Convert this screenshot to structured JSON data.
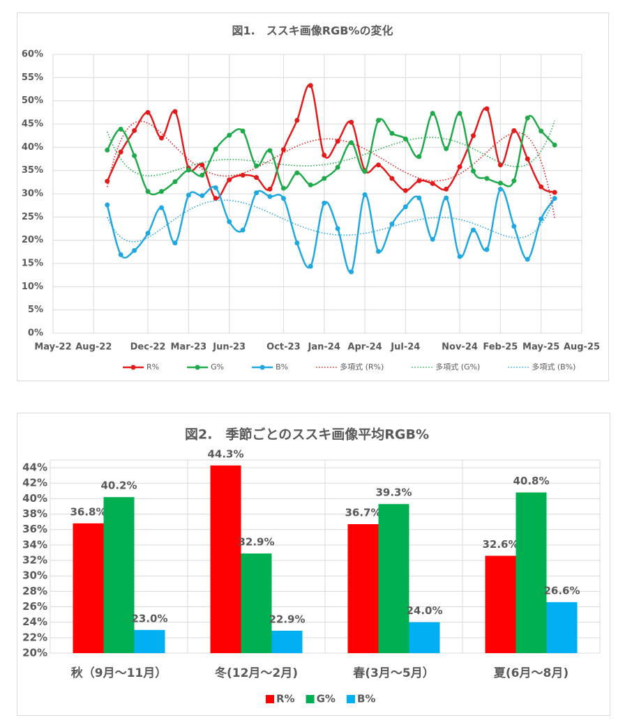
{
  "chart_data": [
    {
      "type": "line",
      "title": "図1.　ススキ画像RGB%の変化",
      "x": [
        "2022-09",
        "2022-10",
        "2022-11",
        "2022-12",
        "2023-01",
        "2023-02",
        "2023-03",
        "2023-04",
        "2023-05",
        "2023-06",
        "2023-07",
        "2023-08",
        "2023-09",
        "2023-10",
        "2023-11",
        "2023-12",
        "2024-01",
        "2024-02",
        "2024-03",
        "2024-04",
        "2024-05",
        "2024-06",
        "2024-07",
        "2024-08",
        "2024-09",
        "2024-10",
        "2024-11",
        "2024-12",
        "2025-01",
        "2025-02",
        "2025-03",
        "2025-04",
        "2025-05",
        "2025-06"
      ],
      "series": [
        {
          "name": "R%",
          "color": "#e31a1c",
          "trendline": {
            "name": "多項式 (R%)",
            "type": "polynomial",
            "order": 6
          },
          "values": [
            32.7,
            39,
            43.6,
            47.5,
            42,
            47.7,
            35.5,
            36.2,
            29,
            33,
            34,
            33.5,
            31,
            39.5,
            45.8,
            53.3,
            38.3,
            41.3,
            45.4,
            35,
            36.2,
            33.3,
            30.7,
            32.8,
            32.2,
            31,
            35.8,
            42.5,
            48.3,
            36.2,
            43.6,
            37.5,
            31.5,
            30.3
          ]
        },
        {
          "name": "G%",
          "color": "#1faa4a",
          "trendline": {
            "name": "多項式 (G%)",
            "type": "polynomial",
            "order": 6
          },
          "values": [
            39.4,
            43.9,
            38.2,
            30.5,
            30.5,
            32.6,
            35.1,
            34.0,
            39.6,
            42.6,
            43.5,
            36.0,
            39.3,
            31.2,
            34.5,
            31.9,
            33.3,
            35.7,
            41.0,
            34.8,
            45.8,
            43.0,
            41.8,
            38.0,
            47.3,
            39.7,
            47.3,
            34.9,
            33.3,
            32.3,
            32.8,
            46.3,
            43.5,
            40.5
          ]
        },
        {
          "name": "B%",
          "color": "#1fa8e0",
          "trendline": {
            "name": "多項式 (B%)",
            "type": "polynomial",
            "order": 6
          },
          "values": [
            27.6,
            16.9,
            17.8,
            21.5,
            27.0,
            19.4,
            29.7,
            29.6,
            31.3,
            24.0,
            22.2,
            30.2,
            29.4,
            29.0,
            19.4,
            14.4,
            28.0,
            22.5,
            13.2,
            29.8,
            17.6,
            23.5,
            27.2,
            29.1,
            20.2,
            29.1,
            16.5,
            22.2,
            18.0,
            31.0,
            23.0,
            15.9,
            24.6,
            29.0
          ]
        }
      ],
      "xlim": [
        "2022-05",
        "2025-08"
      ],
      "xticks": [
        {
          "value": "2022-05",
          "label": "May-22"
        },
        {
          "value": "2022-08",
          "label": "Aug-22"
        },
        {
          "value": "2022-12",
          "label": "Dec-22"
        },
        {
          "value": "2023-03",
          "label": "Mar-23"
        },
        {
          "value": "2023-06",
          "label": "Jun-23"
        },
        {
          "value": "2023-10",
          "label": "Oct-23"
        },
        {
          "value": "2024-01",
          "label": "Jan-24"
        },
        {
          "value": "2024-04",
          "label": "Apr-24"
        },
        {
          "value": "2024-07",
          "label": "Jul-24"
        },
        {
          "value": "2024-11",
          "label": "Nov-24"
        },
        {
          "value": "2025-02",
          "label": "Feb-25"
        },
        {
          "value": "2025-05",
          "label": "May-25"
        },
        {
          "value": "2025-08",
          "label": "Aug-25"
        }
      ],
      "ylim": [
        0,
        60
      ],
      "yticks": [
        {
          "value": 0,
          "label": "0%"
        },
        {
          "value": 5,
          "label": "5%"
        },
        {
          "value": 10,
          "label": "10%"
        },
        {
          "value": 15,
          "label": "15%"
        },
        {
          "value": 20,
          "label": "20%"
        },
        {
          "value": 25,
          "label": "25%"
        },
        {
          "value": 30,
          "label": "30%"
        },
        {
          "value": 35,
          "label": "35%"
        },
        {
          "value": 40,
          "label": "40%"
        },
        {
          "value": 45,
          "label": "45%"
        },
        {
          "value": 50,
          "label": "50%"
        },
        {
          "value": 55,
          "label": "55%"
        },
        {
          "value": 60,
          "label": "60%"
        }
      ],
      "grid": true,
      "legend": "bottom"
    },
    {
      "type": "bar",
      "title": "図2.　季節ごとのススキ画像平均RGB%",
      "categories": [
        "秋（9月～11月）",
        "冬(12月～2月)",
        "春(3月～5月）",
        "夏(6月～8月)"
      ],
      "series": [
        {
          "name": "R%",
          "color": "#ff0000",
          "values": [
            36.8,
            44.3,
            36.7,
            32.6
          ],
          "value_labels": [
            "36.8%",
            "44.3%",
            "36.7%",
            "32.6%"
          ]
        },
        {
          "name": "G%",
          "color": "#00b050",
          "values": [
            40.2,
            32.9,
            39.3,
            40.8
          ],
          "value_labels": [
            "40.2%",
            "32.9%",
            "39.3%",
            "40.8%"
          ]
        },
        {
          "name": "B%",
          "color": "#00b0f0",
          "values": [
            23.0,
            22.9,
            24.0,
            26.6
          ],
          "value_labels": [
            "23.0%",
            "22.9%",
            "24.0%",
            "26.6%"
          ]
        }
      ],
      "ylim": [
        20,
        45
      ],
      "yticks": [
        {
          "value": 20,
          "label": "20%"
        },
        {
          "value": 22,
          "label": "22%"
        },
        {
          "value": 24,
          "label": "24%"
        },
        {
          "value": 26,
          "label": "26%"
        },
        {
          "value": 28,
          "label": "28%"
        },
        {
          "value": 30,
          "label": "30%"
        },
        {
          "value": 32,
          "label": "32%"
        },
        {
          "value": 34,
          "label": "34%"
        },
        {
          "value": 36,
          "label": "36%"
        },
        {
          "value": 38,
          "label": "38%"
        },
        {
          "value": 40,
          "label": "40%"
        },
        {
          "value": 42,
          "label": "42%"
        },
        {
          "value": 44,
          "label": "44%"
        }
      ],
      "grid": true,
      "legend": "bottom"
    }
  ]
}
